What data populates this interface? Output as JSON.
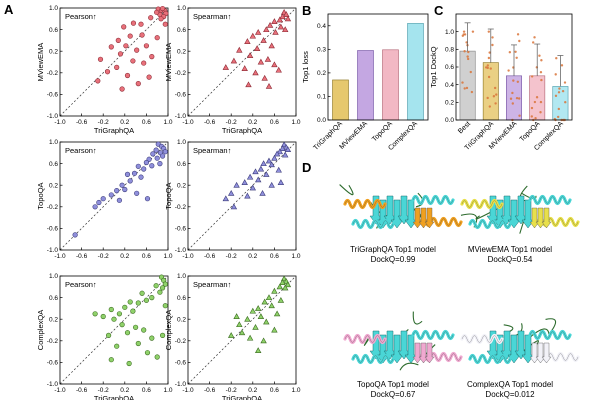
{
  "figure": {
    "panel_labels": [
      "A",
      "B",
      "C",
      "D"
    ]
  },
  "colors": {
    "red": "#e8707a",
    "red_edge": "#8c2a35",
    "purple": "#8f8fdb",
    "purple_edge": "#3c3c7a",
    "green": "#8fd16a",
    "green_edge": "#3a6b1f",
    "bar_yellow": "#e6c86e",
    "bar_purple": "#c4a7e2",
    "bar_pink": "#f2b8c4",
    "bar_cyan": "#a5e4ee",
    "dot_orange": "#d9743a",
    "cyan_ribbon": "#4ad6d6",
    "orange_ribbon": "#f0a020",
    "yellow_ribbon": "#e8e04a",
    "pink_ribbon": "#f0a8d0",
    "white_ribbon": "#f2f2f8",
    "dark_green": "#2d6b2d"
  },
  "chart_data": [
    {
      "type": "scatter",
      "id": "A1",
      "marker": "circle",
      "color": "red",
      "annotation": "Pearson↑",
      "xlabel": "TriGraphQA",
      "ylabel": "MViewEMA",
      "xlim": [
        -1.0,
        1.0
      ],
      "ylim": [
        -1.0,
        1.0
      ],
      "xticks": [
        "-1.0",
        "-0.6",
        "-0.2",
        "0.2",
        "0.6",
        "1.0"
      ],
      "yticks": [
        "-1.0",
        "-0.6",
        "-0.2",
        "0.2",
        "0.6",
        "1.0"
      ],
      "points": [
        [
          0.82,
          0.98
        ],
        [
          0.88,
          0.96
        ],
        [
          0.94,
          0.95
        ],
        [
          0.9,
          0.99
        ],
        [
          0.96,
          0.9
        ],
        [
          0.85,
          0.88
        ],
        [
          0.92,
          0.84
        ],
        [
          0.79,
          0.92
        ],
        [
          0.87,
          0.8
        ],
        [
          0.68,
          0.82
        ],
        [
          0.5,
          0.7
        ],
        [
          0.36,
          0.72
        ],
        [
          0.18,
          0.65
        ],
        [
          0.52,
          0.5
        ],
        [
          0.3,
          0.48
        ],
        [
          0.08,
          0.4
        ],
        [
          0.22,
          0.3
        ],
        [
          -0.05,
          0.28
        ],
        [
          0.6,
          0.3
        ],
        [
          0.42,
          0.22
        ],
        [
          0.12,
          0.15
        ],
        [
          0.7,
          0.1
        ],
        [
          -0.25,
          0.05
        ],
        [
          0.35,
          0.02
        ],
        [
          0.55,
          -0.02
        ],
        [
          0.05,
          -0.1
        ],
        [
          -0.12,
          -0.18
        ],
        [
          0.25,
          -0.25
        ],
        [
          0.65,
          -0.28
        ],
        [
          0.45,
          -0.4
        ],
        [
          -0.3,
          -0.35
        ],
        [
          0.15,
          -0.5
        ],
        [
          0.8,
          0.45
        ],
        [
          0.95,
          0.7
        ]
      ]
    },
    {
      "type": "scatter",
      "id": "A2",
      "marker": "triangle",
      "color": "red",
      "annotation": "Spearman↑",
      "xlabel": "TriGraphQA",
      "ylabel": "MViewEMA",
      "xlim": [
        -1.0,
        1.0
      ],
      "ylim": [
        -1.0,
        1.0
      ],
      "xticks": [
        "-1.0",
        "-0.6",
        "-0.2",
        "0.2",
        "0.6",
        "1.0"
      ],
      "yticks": [
        "-1.0",
        "-0.6",
        "-0.2",
        "0.2",
        "0.6",
        "1.0"
      ],
      "points": [
        [
          0.78,
          0.92
        ],
        [
          0.82,
          0.88
        ],
        [
          0.75,
          0.84
        ],
        [
          0.85,
          0.8
        ],
        [
          0.7,
          0.78
        ],
        [
          0.6,
          0.75
        ],
        [
          0.52,
          0.68
        ],
        [
          0.45,
          0.6
        ],
        [
          0.3,
          0.55
        ],
        [
          0.62,
          0.55
        ],
        [
          0.2,
          0.48
        ],
        [
          0.4,
          0.4
        ],
        [
          0.1,
          0.38
        ],
        [
          0.55,
          0.3
        ],
        [
          0.28,
          0.25
        ],
        [
          -0.05,
          0.22
        ],
        [
          0.15,
          0.12
        ],
        [
          0.48,
          0.05
        ],
        [
          0.35,
          0.0
        ],
        [
          -0.15,
          0.02
        ],
        [
          0.6,
          -0.05
        ],
        [
          0.05,
          -0.12
        ],
        [
          0.25,
          -0.2
        ],
        [
          0.68,
          -0.15
        ],
        [
          0.42,
          -0.3
        ],
        [
          0.72,
          0.65
        ],
        [
          0.8,
          0.6
        ],
        [
          -0.3,
          -0.1
        ],
        [
          0.12,
          -0.42
        ],
        [
          0.5,
          -0.45
        ]
      ]
    },
    {
      "type": "scatter",
      "id": "A3",
      "marker": "circle",
      "color": "purple",
      "annotation": "Pearson↑",
      "xlabel": "",
      "ylabel": "TopoQA",
      "xlim": [
        -1.0,
        1.0
      ],
      "ylim": [
        -1.0,
        1.0
      ],
      "xticks": [
        "-1.0",
        "-0.6",
        "-0.2",
        "0.2",
        "0.6",
        "1.0"
      ],
      "yticks": [
        "-1.0",
        "-0.6",
        "-0.2",
        "0.2",
        "0.6",
        "1.0"
      ],
      "points": [
        [
          0.82,
          0.96
        ],
        [
          0.88,
          0.92
        ],
        [
          0.92,
          0.88
        ],
        [
          0.95,
          0.82
        ],
        [
          0.86,
          0.8
        ],
        [
          0.78,
          0.85
        ],
        [
          0.72,
          0.78
        ],
        [
          0.9,
          0.74
        ],
        [
          0.8,
          0.7
        ],
        [
          0.65,
          0.68
        ],
        [
          0.6,
          0.62
        ],
        [
          0.55,
          0.5
        ],
        [
          0.7,
          0.56
        ],
        [
          0.45,
          0.55
        ],
        [
          0.38,
          0.42
        ],
        [
          0.25,
          0.4
        ],
        [
          0.3,
          0.28
        ],
        [
          0.5,
          0.35
        ],
        [
          0.15,
          0.2
        ],
        [
          0.05,
          0.1
        ],
        [
          -0.05,
          0.02
        ],
        [
          -0.2,
          -0.05
        ],
        [
          -0.35,
          -0.2
        ],
        [
          -0.28,
          -0.12
        ],
        [
          0.1,
          -0.08
        ],
        [
          0.42,
          0.05
        ],
        [
          0.62,
          -0.05
        ],
        [
          0.85,
          0.6
        ],
        [
          -0.72,
          -0.72
        ],
        [
          0.2,
          0.12
        ]
      ]
    },
    {
      "type": "scatter",
      "id": "A4",
      "marker": "triangle",
      "color": "purple",
      "annotation": "Spearman↑",
      "xlabel": "",
      "ylabel": "TopoQA",
      "xlim": [
        -1.0,
        1.0
      ],
      "ylim": [
        -1.0,
        1.0
      ],
      "xticks": [
        "-1.0",
        "-0.6",
        "-0.2",
        "0.2",
        "0.6",
        "1.0"
      ],
      "yticks": [
        "-1.0",
        "-0.6",
        "-0.2",
        "0.2",
        "0.6",
        "1.0"
      ],
      "points": [
        [
          0.78,
          0.95
        ],
        [
          0.82,
          0.9
        ],
        [
          0.75,
          0.88
        ],
        [
          0.85,
          0.86
        ],
        [
          0.7,
          0.82
        ],
        [
          0.65,
          0.78
        ],
        [
          0.8,
          0.76
        ],
        [
          0.6,
          0.7
        ],
        [
          0.5,
          0.65
        ],
        [
          0.55,
          0.58
        ],
        [
          0.4,
          0.6
        ],
        [
          0.35,
          0.5
        ],
        [
          0.25,
          0.45
        ],
        [
          0.45,
          0.4
        ],
        [
          0.15,
          0.35
        ],
        [
          0.3,
          0.3
        ],
        [
          0.05,
          0.25
        ],
        [
          -0.1,
          0.2
        ],
        [
          0.2,
          0.15
        ],
        [
          -0.2,
          0.05
        ],
        [
          0.38,
          0.05
        ],
        [
          0.1,
          0.0
        ],
        [
          -0.3,
          -0.05
        ],
        [
          0.55,
          0.2
        ],
        [
          0.68,
          0.48
        ],
        [
          -0.15,
          -0.2
        ],
        [
          0.72,
          0.25
        ]
      ]
    },
    {
      "type": "scatter",
      "id": "A5",
      "marker": "circle",
      "color": "green",
      "annotation": "Pearson↑",
      "xlabel": "TriGraphQA",
      "ylabel": "ComplexQA",
      "xlim": [
        -1.0,
        1.0
      ],
      "ylim": [
        -1.0,
        1.0
      ],
      "xticks": [
        "-1.0",
        "-0.6",
        "-0.2",
        "0.2",
        "0.6",
        "1.0"
      ],
      "yticks": [
        "-1.0",
        "-0.6",
        "-0.2",
        "0.2",
        "0.6",
        "1.0"
      ],
      "points": [
        [
          0.88,
          0.98
        ],
        [
          0.92,
          0.92
        ],
        [
          0.95,
          0.85
        ],
        [
          0.9,
          0.78
        ],
        [
          0.85,
          0.7
        ],
        [
          0.78,
          0.82
        ],
        [
          0.7,
          0.6
        ],
        [
          0.6,
          0.55
        ],
        [
          0.52,
          0.68
        ],
        [
          0.45,
          0.5
        ],
        [
          0.3,
          0.52
        ],
        [
          0.2,
          0.42
        ],
        [
          0.35,
          0.35
        ],
        [
          0.1,
          0.3
        ],
        [
          -0.05,
          0.38
        ],
        [
          0.0,
          0.2
        ],
        [
          -0.2,
          0.25
        ],
        [
          -0.35,
          0.3
        ],
        [
          0.15,
          0.1
        ],
        [
          0.4,
          0.05
        ],
        [
          0.25,
          -0.05
        ],
        [
          0.55,
          0.0
        ],
        [
          -0.1,
          -0.1
        ],
        [
          0.7,
          -0.15
        ],
        [
          0.05,
          -0.3
        ],
        [
          0.45,
          -0.25
        ],
        [
          0.62,
          -0.42
        ],
        [
          0.9,
          -0.1
        ],
        [
          0.8,
          -0.5
        ],
        [
          -0.05,
          -0.55
        ],
        [
          0.28,
          -0.62
        ],
        [
          0.95,
          0.45
        ]
      ]
    },
    {
      "type": "scatter",
      "id": "A6",
      "marker": "triangle",
      "color": "green",
      "annotation": "Spearman↑",
      "xlabel": "TriGraphQA",
      "ylabel": "ComplexQA",
      "xlim": [
        -1.0,
        1.0
      ],
      "ylim": [
        -1.0,
        1.0
      ],
      "xticks": [
        "-1.0",
        "-0.6",
        "-0.2",
        "0.2",
        "0.6",
        "1.0"
      ],
      "yticks": [
        "-1.0",
        "-0.6",
        "-0.2",
        "0.2",
        "0.6",
        "1.0"
      ],
      "points": [
        [
          0.78,
          0.95
        ],
        [
          0.82,
          0.9
        ],
        [
          0.75,
          0.88
        ],
        [
          0.85,
          0.84
        ],
        [
          0.7,
          0.8
        ],
        [
          0.8,
          0.78
        ],
        [
          0.6,
          0.72
        ],
        [
          0.5,
          0.6
        ],
        [
          0.42,
          0.52
        ],
        [
          0.55,
          0.45
        ],
        [
          0.3,
          0.4
        ],
        [
          0.2,
          0.35
        ],
        [
          0.35,
          0.25
        ],
        [
          0.1,
          0.2
        ],
        [
          0.45,
          0.15
        ],
        [
          -0.05,
          0.1
        ],
        [
          0.25,
          0.05
        ],
        [
          0.0,
          -0.05
        ],
        [
          0.6,
          0.0
        ],
        [
          -0.2,
          -0.1
        ],
        [
          0.15,
          -0.15
        ],
        [
          0.4,
          -0.2
        ],
        [
          0.65,
          0.3
        ],
        [
          0.72,
          0.55
        ],
        [
          -0.1,
          0.25
        ],
        [
          0.3,
          -0.38
        ]
      ]
    },
    {
      "type": "bar",
      "id": "B",
      "ylabel": "Top1 loss",
      "categories": [
        "TriGraphQA",
        "MViewEMA",
        "TopoQA",
        "ComplexQA"
      ],
      "values": [
        0.17,
        0.295,
        0.298,
        0.41
      ],
      "ylim": [
        0,
        0.45
      ],
      "yticks": [
        "0.0",
        "0.1",
        "0.2",
        "0.3",
        "0.4"
      ]
    },
    {
      "type": "bar",
      "id": "C",
      "ylabel": "Top1 DockQ",
      "categories": [
        "Best",
        "TriGraphQA",
        "MViewEMA",
        "TopoQA",
        "ComplexQA"
      ],
      "values": [
        0.78,
        0.65,
        0.5,
        0.5,
        0.38
      ],
      "errors": [
        0.32,
        0.38,
        0.35,
        0.36,
        0.35
      ],
      "ylim": [
        0,
        1.2
      ],
      "yticks": [
        "0.0",
        "0.2",
        "0.4",
        "0.6",
        "0.8",
        "1.0"
      ]
    }
  ],
  "structures": [
    {
      "title": "TriGraphQA Top1 model",
      "dockq": "DockQ=0.99"
    },
    {
      "title": "MViewEMA Top1 model",
      "dockq": "DockQ=0.54"
    },
    {
      "title": "TopoQA Top1 model",
      "dockq": "DockQ=0.67"
    },
    {
      "title": "ComplexQA Top1 model",
      "dockq": "DockQ=0.012"
    }
  ]
}
